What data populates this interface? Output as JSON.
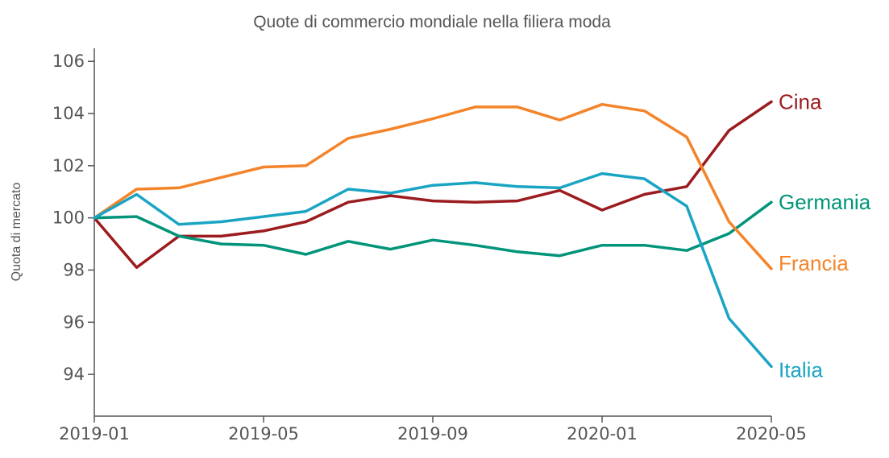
{
  "chart_data": {
    "type": "line",
    "title": "Quote di commercio mondiale nella filiera moda",
    "xlabel": "",
    "ylabel": "Quota di mercato",
    "x": [
      "2019-01",
      "2019-02",
      "2019-03",
      "2019-04",
      "2019-05",
      "2019-06",
      "2019-07",
      "2019-08",
      "2019-09",
      "2019-10",
      "2019-11",
      "2019-12",
      "2020-01",
      "2020-02",
      "2020-03",
      "2020-04",
      "2020-05"
    ],
    "x_ticks": [
      "2019-01",
      "2019-05",
      "2019-09",
      "2020-01",
      "2020-05"
    ],
    "y_ticks": [
      94,
      96,
      98,
      100,
      102,
      104,
      106
    ],
    "ylim": [
      92.4,
      106.5
    ],
    "grid": false,
    "legend": "direct labels at line ends",
    "series": [
      {
        "name": "Cina",
        "color": "#9b1b1f",
        "values": [
          100,
          98.1,
          99.3,
          99.3,
          99.5,
          99.85,
          100.6,
          100.85,
          100.65,
          100.6,
          100.65,
          101.05,
          100.3,
          100.9,
          101.2,
          103.35,
          104.45
        ]
      },
      {
        "name": "Germania",
        "color": "#00947a",
        "values": [
          100,
          100.05,
          99.3,
          99.0,
          98.95,
          98.6,
          99.1,
          98.8,
          99.15,
          98.95,
          98.7,
          98.55,
          98.95,
          98.95,
          98.75,
          99.4,
          100.6
        ]
      },
      {
        "name": "Francia",
        "color": "#f4842a",
        "values": [
          100,
          101.1,
          101.15,
          101.55,
          101.95,
          102.0,
          103.05,
          103.4,
          103.8,
          104.25,
          104.25,
          103.75,
          104.35,
          104.1,
          103.1,
          99.85,
          98.05
        ]
      },
      {
        "name": "Italia",
        "color": "#1aa4c4",
        "values": [
          100,
          100.9,
          99.75,
          99.85,
          100.05,
          100.25,
          101.1,
          100.95,
          101.25,
          101.35,
          101.2,
          101.15,
          101.7,
          101.5,
          100.45,
          96.15,
          94.3
        ]
      }
    ]
  }
}
